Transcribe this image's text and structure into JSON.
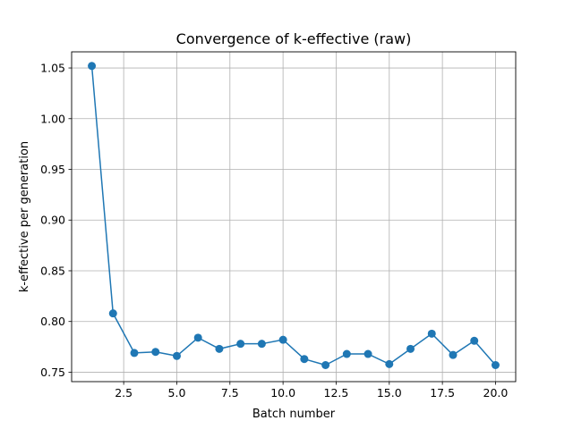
{
  "chart_data": {
    "type": "line",
    "title": "Convergence of k-effective (raw)",
    "xlabel": "Batch number",
    "ylabel": "k-effective per generation",
    "xlim": [
      0.05,
      20.95
    ],
    "ylim": [
      0.7407,
      1.0659
    ],
    "xticks": [
      2.5,
      5.0,
      7.5,
      10.0,
      12.5,
      15.0,
      17.5,
      20.0
    ],
    "xtick_labels": [
      "2.5",
      "5.0",
      "7.5",
      "10.0",
      "12.5",
      "15.0",
      "17.5",
      "20.0"
    ],
    "yticks": [
      0.75,
      0.8,
      0.85,
      0.9,
      0.95,
      1.0,
      1.05
    ],
    "ytick_labels": [
      "0.75",
      "0.80",
      "0.85",
      "0.90",
      "0.95",
      "1.00",
      "1.05"
    ],
    "grid": true,
    "marker": "circle",
    "color": "#1f77b4",
    "x": [
      1,
      2,
      3,
      4,
      5,
      6,
      7,
      8,
      9,
      10,
      11,
      12,
      13,
      14,
      15,
      16,
      17,
      18,
      19,
      20
    ],
    "series": [
      {
        "values": [
          1.052,
          0.808,
          0.769,
          0.77,
          0.766,
          0.784,
          0.773,
          0.778,
          0.778,
          0.782,
          0.763,
          0.757,
          0.768,
          0.768,
          0.758,
          0.773,
          0.788,
          0.767,
          0.781,
          0.757
        ]
      }
    ]
  }
}
